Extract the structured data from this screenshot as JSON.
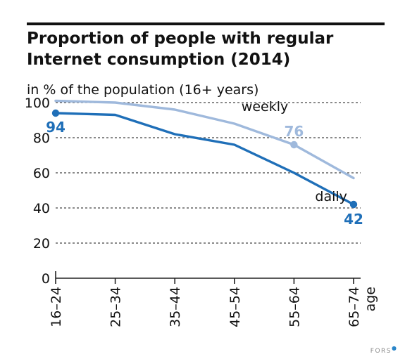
{
  "title_line1": "Proportion of people with regular",
  "title_line2": "Internet consumption (2014)",
  "subtitle": "in % of the population (16+ years)",
  "credit": "FORS",
  "colors": {
    "daily": "#1f6fb8",
    "weekly": "#9fb9dc",
    "axis": "#222222",
    "grid": "#444444",
    "text": "#111111"
  },
  "chart_data": {
    "type": "line",
    "title": "Proportion of people with regular Internet consumption (2014)",
    "subtitle": "in % of the population (16+ years)",
    "xlabel": "age",
    "ylabel": "",
    "categories": [
      "16–24",
      "25–34",
      "35–44",
      "45–54",
      "55–64",
      "65–74"
    ],
    "ylim": [
      0,
      100
    ],
    "yticks": [
      0,
      20,
      40,
      60,
      80,
      100
    ],
    "grid": true,
    "series": [
      {
        "name": "weekly",
        "color": "#9fb9dc",
        "values": [
          101,
          100,
          96,
          88,
          76,
          57
        ],
        "highlight": [
          {
            "index": 4,
            "label": "76"
          }
        ]
      },
      {
        "name": "daily",
        "color": "#1f6fb8",
        "values": [
          94,
          93,
          82,
          76,
          60,
          42
        ],
        "highlight": [
          {
            "index": 0,
            "label": "94"
          },
          {
            "index": 5,
            "label": "42"
          }
        ]
      }
    ]
  }
}
